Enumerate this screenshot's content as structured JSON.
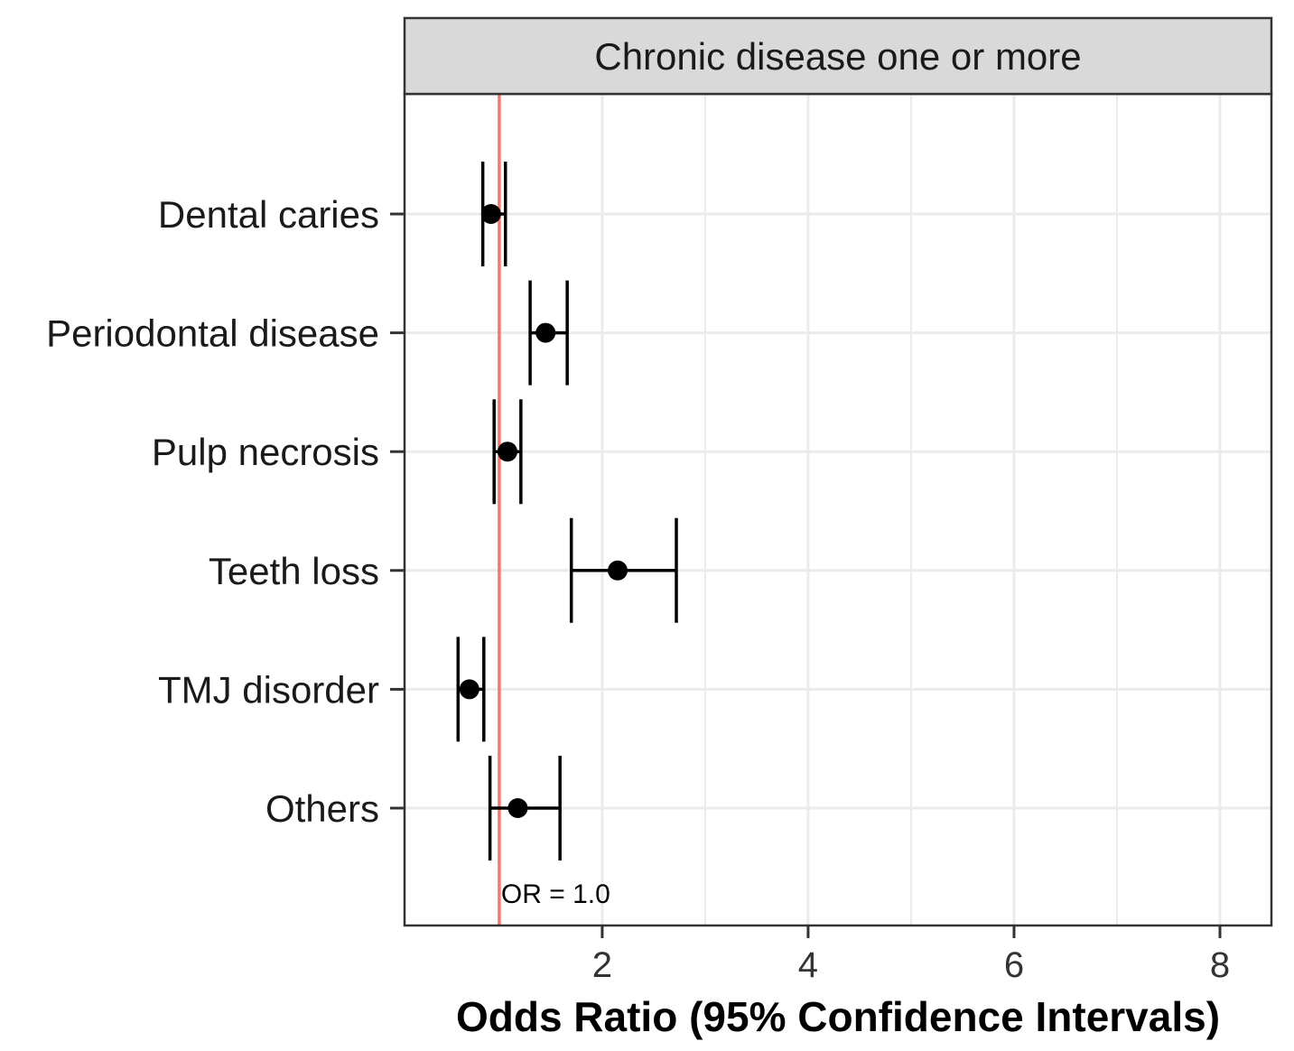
{
  "chart_data": {
    "type": "forest",
    "facet_title": "Chronic disease one or more",
    "xlabel": "Odds Ratio (95% Confidence Intervals)",
    "ylabel": "",
    "xlim": [
      0.08,
      8.5
    ],
    "x_ticks": [
      2,
      4,
      6,
      8
    ],
    "x_minor_gridlines": [
      1,
      3,
      5,
      7
    ],
    "grid": true,
    "reference_line": {
      "value": 1.0,
      "label": "OR = 1.0",
      "color": "#F8766D"
    },
    "categories": [
      "Dental caries",
      "Periodontal disease",
      "Pulp necrosis",
      "Teeth loss",
      "TMJ disorder",
      "Others"
    ],
    "series": [
      {
        "name": "Chronic disease one or more",
        "estimate": [
          0.92,
          1.45,
          1.08,
          2.15,
          0.71,
          1.18
        ],
        "lower": [
          0.84,
          1.3,
          0.95,
          1.7,
          0.6,
          0.91
        ],
        "upper": [
          1.06,
          1.66,
          1.21,
          2.72,
          0.85,
          1.59
        ]
      }
    ],
    "colors": {
      "point": "#000000",
      "strip_bg": "#D9D9D9",
      "grid": "#EBEBEB",
      "border": "#333333"
    }
  }
}
